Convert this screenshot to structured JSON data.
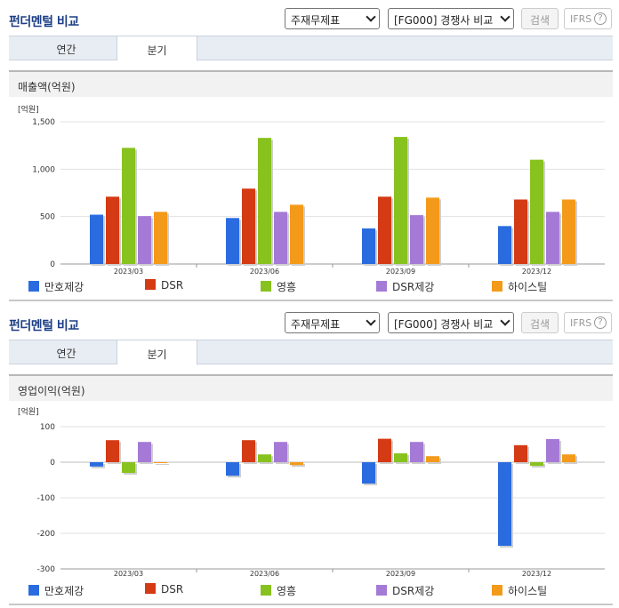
{
  "colors": [
    "#2a6be0",
    "#d43a14",
    "#88c21f",
    "#a57ad6",
    "#f49a1a"
  ],
  "sections": [
    {
      "title": "펀더멘털 비교",
      "select1": "주재무제표",
      "select2": "[FG000] 경쟁사 비교",
      "search_label": "검색",
      "ifrs_label": "IFRS",
      "ifrs_help": "?",
      "tabs": [
        "연간",
        "분기"
      ],
      "active_tab": 1,
      "chart_title": "매출액(억원)"
    },
    {
      "title": "펀더멘털 비교",
      "select1": "주재무제표",
      "select2": "[FG000] 경쟁사 비교",
      "search_label": "검색",
      "ifrs_label": "IFRS",
      "ifrs_help": "?",
      "tabs": [
        "연간",
        "분기"
      ],
      "active_tab": 1,
      "chart_title": "영업이익(억원)"
    }
  ],
  "chart_data": [
    {
      "type": "bar",
      "title": "매출액(억원)",
      "unit_label": "[억원]",
      "categories": [
        "2023/03",
        "2023/06",
        "2023/09",
        "2023/12"
      ],
      "ylim": [
        0,
        1500
      ],
      "yticks": [
        0,
        500,
        1000,
        1500
      ],
      "ytick_labels": [
        "0",
        "500",
        "1,000",
        "1,500"
      ],
      "grid": true,
      "legend": "bottom",
      "series": [
        {
          "name": "만호제강",
          "values": [
            520,
            485,
            375,
            400
          ]
        },
        {
          "name": "DSR",
          "values": [
            710,
            795,
            710,
            680
          ]
        },
        {
          "name": "영흥",
          "values": [
            1225,
            1330,
            1340,
            1100
          ]
        },
        {
          "name": "DSR제강",
          "values": [
            505,
            550,
            515,
            550
          ]
        },
        {
          "name": "하이스틸",
          "values": [
            550,
            625,
            700,
            680
          ]
        }
      ]
    },
    {
      "type": "bar",
      "title": "영업이익(억원)",
      "unit_label": "[억원]",
      "categories": [
        "2023/03",
        "2023/06",
        "2023/09",
        "2023/12"
      ],
      "ylim": [
        -300,
        100
      ],
      "yticks": [
        -300,
        -200,
        -100,
        0,
        100
      ],
      "ytick_labels": [
        "-300",
        "-200",
        "-100",
        "0",
        "100"
      ],
      "grid": true,
      "legend": "bottom",
      "series": [
        {
          "name": "만호제강",
          "values": [
            -12,
            -38,
            -60,
            -235
          ]
        },
        {
          "name": "DSR",
          "values": [
            62,
            62,
            66,
            48
          ]
        },
        {
          "name": "영흥",
          "values": [
            -30,
            22,
            25,
            -10
          ]
        },
        {
          "name": "DSR제강",
          "values": [
            57,
            57,
            57,
            65
          ]
        },
        {
          "name": "하이스틸",
          "values": [
            0,
            -8,
            17,
            22
          ]
        }
      ]
    }
  ]
}
